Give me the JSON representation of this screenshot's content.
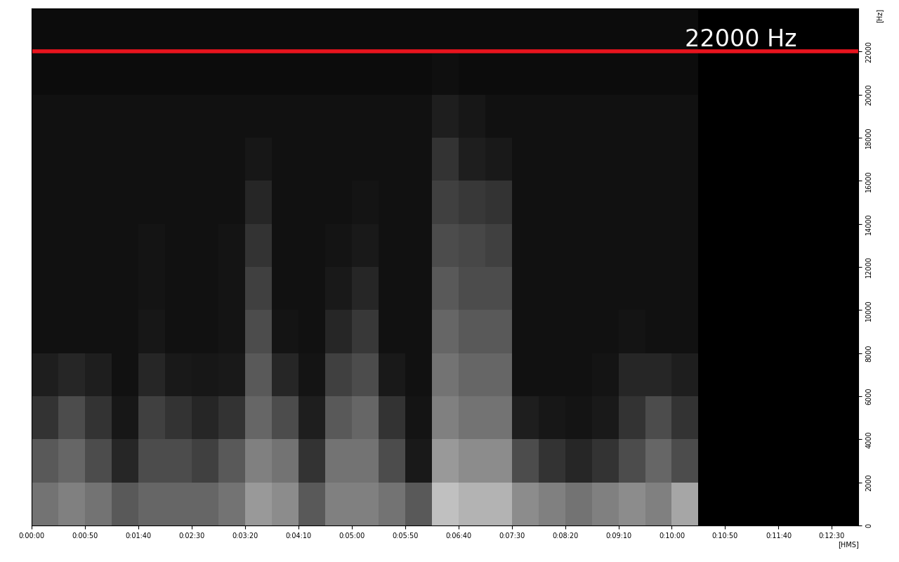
{
  "chart_data": {
    "type": "heatmap",
    "xlabel": "[HMS]",
    "ylabel": "[Hz]",
    "xlim": [
      0,
      775
    ],
    "ylim": [
      0,
      24000
    ],
    "xticks": [
      {
        "value": 0,
        "label": "0:00:00"
      },
      {
        "value": 50,
        "label": "0:00:50"
      },
      {
        "value": 100,
        "label": "0:01:40"
      },
      {
        "value": 150,
        "label": "0:02:30"
      },
      {
        "value": 200,
        "label": "0:03:20"
      },
      {
        "value": 250,
        "label": "0:04:10"
      },
      {
        "value": 300,
        "label": "0:05:00"
      },
      {
        "value": 350,
        "label": "0:05:50"
      },
      {
        "value": 400,
        "label": "0:06:40"
      },
      {
        "value": 450,
        "label": "0:07:30"
      },
      {
        "value": 500,
        "label": "0:08:20"
      },
      {
        "value": 550,
        "label": "0:09:10"
      },
      {
        "value": 600,
        "label": "0:10:00"
      },
      {
        "value": 650,
        "label": "0:10:50"
      },
      {
        "value": 700,
        "label": "0:11:40"
      },
      {
        "value": 750,
        "label": "0:12:30"
      }
    ],
    "yticks": [
      0,
      2000,
      4000,
      6000,
      8000,
      10000,
      12000,
      14000,
      16000,
      18000,
      20000,
      22000
    ],
    "grid": false,
    "color": "gray",
    "color_range": [
      0,
      1
    ],
    "x_edges": [
      0,
      25,
      50,
      75,
      100,
      125,
      150,
      175,
      200,
      225,
      250,
      275,
      300,
      325,
      350,
      375,
      400,
      425,
      450,
      475,
      500,
      525,
      550,
      575,
      600,
      625,
      650,
      675,
      700,
      725,
      750,
      775
    ],
    "y_edges": [
      0,
      2000,
      4000,
      6000,
      8000,
      10000,
      12000,
      14000,
      16000,
      18000,
      20000,
      22000,
      24000
    ],
    "cells": [
      [
        0.45,
        0.35,
        0.2,
        0.12,
        0.07,
        0.07,
        0.07,
        0.07,
        0.07,
        0.07,
        0.05,
        0.05
      ],
      [
        0.5,
        0.4,
        0.3,
        0.15,
        0.07,
        0.07,
        0.07,
        0.07,
        0.07,
        0.07,
        0.05,
        0.05
      ],
      [
        0.45,
        0.3,
        0.2,
        0.12,
        0.07,
        0.07,
        0.07,
        0.07,
        0.07,
        0.07,
        0.05,
        0.05
      ],
      [
        0.35,
        0.15,
        0.09,
        0.07,
        0.07,
        0.07,
        0.07,
        0.07,
        0.07,
        0.07,
        0.05,
        0.05
      ],
      [
        0.4,
        0.3,
        0.25,
        0.15,
        0.09,
        0.08,
        0.08,
        0.07,
        0.07,
        0.07,
        0.05,
        0.05
      ],
      [
        0.4,
        0.3,
        0.2,
        0.1,
        0.07,
        0.07,
        0.07,
        0.07,
        0.07,
        0.07,
        0.05,
        0.05
      ],
      [
        0.4,
        0.25,
        0.15,
        0.09,
        0.07,
        0.07,
        0.07,
        0.07,
        0.07,
        0.07,
        0.05,
        0.05
      ],
      [
        0.45,
        0.35,
        0.2,
        0.1,
        0.08,
        0.08,
        0.08,
        0.07,
        0.07,
        0.07,
        0.05,
        0.05
      ],
      [
        0.6,
        0.5,
        0.4,
        0.35,
        0.3,
        0.25,
        0.2,
        0.15,
        0.09,
        0.07,
        0.05,
        0.05
      ],
      [
        0.55,
        0.45,
        0.3,
        0.15,
        0.08,
        0.07,
        0.07,
        0.07,
        0.07,
        0.07,
        0.05,
        0.05
      ],
      [
        0.35,
        0.2,
        0.12,
        0.08,
        0.07,
        0.07,
        0.07,
        0.07,
        0.07,
        0.07,
        0.05,
        0.05
      ],
      [
        0.5,
        0.45,
        0.35,
        0.25,
        0.15,
        0.1,
        0.08,
        0.07,
        0.07,
        0.07,
        0.05,
        0.05
      ],
      [
        0.5,
        0.45,
        0.4,
        0.3,
        0.22,
        0.15,
        0.1,
        0.08,
        0.07,
        0.07,
        0.05,
        0.05
      ],
      [
        0.45,
        0.3,
        0.2,
        0.1,
        0.07,
        0.07,
        0.07,
        0.07,
        0.07,
        0.07,
        0.05,
        0.05
      ],
      [
        0.35,
        0.1,
        0.08,
        0.07,
        0.07,
        0.07,
        0.07,
        0.07,
        0.07,
        0.07,
        0.05,
        0.05
      ],
      [
        0.75,
        0.6,
        0.5,
        0.45,
        0.4,
        0.35,
        0.3,
        0.25,
        0.2,
        0.12,
        0.06,
        0.05
      ],
      [
        0.7,
        0.55,
        0.45,
        0.4,
        0.35,
        0.3,
        0.28,
        0.22,
        0.12,
        0.09,
        0.05,
        0.05
      ],
      [
        0.7,
        0.55,
        0.45,
        0.4,
        0.35,
        0.3,
        0.25,
        0.2,
        0.1,
        0.07,
        0.05,
        0.05
      ],
      [
        0.55,
        0.3,
        0.12,
        0.07,
        0.07,
        0.07,
        0.07,
        0.07,
        0.07,
        0.07,
        0.05,
        0.05
      ],
      [
        0.5,
        0.2,
        0.09,
        0.07,
        0.07,
        0.07,
        0.07,
        0.07,
        0.07,
        0.07,
        0.05,
        0.05
      ],
      [
        0.45,
        0.15,
        0.08,
        0.07,
        0.07,
        0.07,
        0.07,
        0.07,
        0.07,
        0.07,
        0.05,
        0.05
      ],
      [
        0.5,
        0.2,
        0.1,
        0.08,
        0.07,
        0.07,
        0.07,
        0.07,
        0.07,
        0.07,
        0.05,
        0.05
      ],
      [
        0.55,
        0.3,
        0.2,
        0.15,
        0.08,
        0.07,
        0.07,
        0.07,
        0.07,
        0.07,
        0.05,
        0.05
      ],
      [
        0.5,
        0.4,
        0.3,
        0.15,
        0.07,
        0.07,
        0.07,
        0.07,
        0.07,
        0.07,
        0.05,
        0.05
      ],
      [
        0.65,
        0.3,
        0.2,
        0.12,
        0.07,
        0.07,
        0.07,
        0.07,
        0.07,
        0.07,
        0.05,
        0.05
      ],
      [
        0,
        0,
        0,
        0,
        0,
        0,
        0,
        0,
        0,
        0,
        0,
        0
      ],
      [
        0,
        0,
        0,
        0,
        0,
        0,
        0,
        0,
        0,
        0,
        0,
        0
      ],
      [
        0,
        0,
        0,
        0,
        0,
        0,
        0,
        0,
        0,
        0,
        0,
        0
      ],
      [
        0,
        0,
        0,
        0,
        0,
        0,
        0,
        0,
        0,
        0,
        0,
        0
      ],
      [
        0,
        0,
        0,
        0,
        0,
        0,
        0,
        0,
        0,
        0,
        0,
        0
      ],
      [
        0,
        0,
        0,
        0,
        0,
        0,
        0,
        0,
        0,
        0,
        0,
        0
      ]
    ],
    "annotations": [
      {
        "text": "22000 Hz",
        "y": 22000,
        "color": "#e8141e"
      }
    ]
  }
}
